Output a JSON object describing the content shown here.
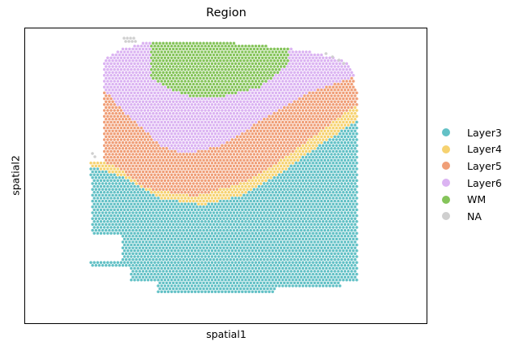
{
  "chart_data": {
    "type": "scatter",
    "title": "Region",
    "xlabel": "spatial1",
    "ylabel": "spatial2",
    "xticks": [],
    "yticks": [],
    "grid": false,
    "legend": {
      "placement": "right",
      "entries": [
        {
          "name": "Layer3",
          "color": "#63c1c6"
        },
        {
          "name": "Layer4",
          "color": "#f6d270"
        },
        {
          "name": "Layer5",
          "color": "#f09f78"
        },
        {
          "name": "Layer6",
          "color": "#dbb3f2"
        },
        {
          "name": "WM",
          "color": "#85c45a"
        },
        {
          "name": "NA",
          "color": "#cfcfcf"
        }
      ]
    }
  }
}
